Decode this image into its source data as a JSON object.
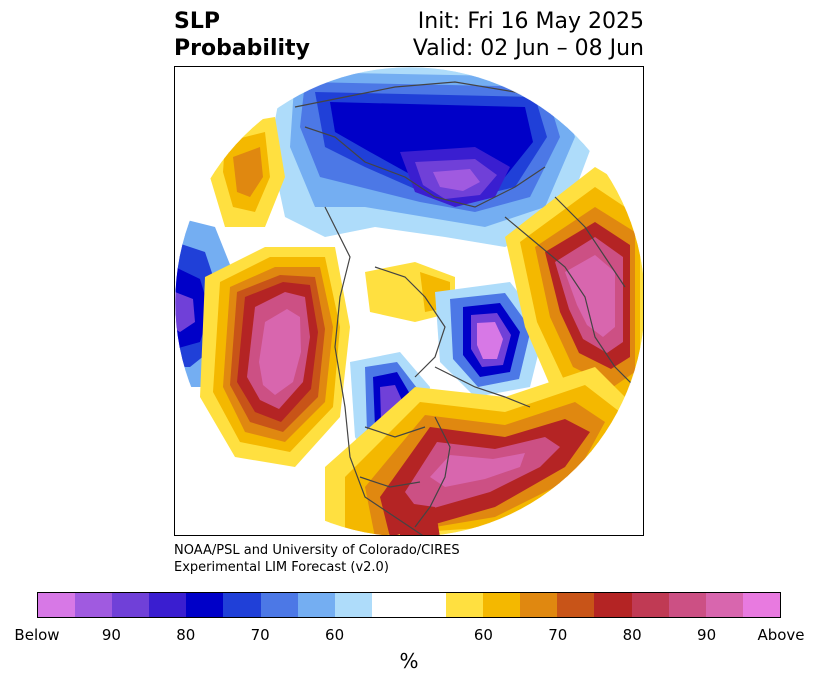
{
  "title": {
    "variable": "SLP",
    "subtitle": "Probability",
    "init": "Init: Fri 16 May 2025",
    "valid": "Valid: 02 Jun – 08 Jun"
  },
  "credits": {
    "line1": "NOAA/PSL and University of Colorado/CIRES",
    "line2": "Experimental LIM Forecast (v2.0)"
  },
  "colorbar": {
    "colors": [
      "#d778e6",
      "#a05ae0",
      "#7040d8",
      "#3a1ed0",
      "#0000c8",
      "#2040d8",
      "#4c78e6",
      "#74aef2",
      "#aedcfa",
      "#ffffff",
      "#ffffff",
      "#ffe040",
      "#f4b800",
      "#e08810",
      "#c85418",
      "#b42424",
      "#c03a54",
      "#cc5084",
      "#d866ae",
      "#e87ae0"
    ],
    "tick_labels": [
      "Below",
      "90",
      "80",
      "70",
      "60",
      "60",
      "70",
      "80",
      "90",
      "Above"
    ],
    "unit": "%"
  },
  "legend_palette": {
    "below_strong": "#9b4ee0",
    "below_mid": "#1c1cd0",
    "below_weak": "#74aef2",
    "above_weak": "#ffe040",
    "above_mid": "#e08810",
    "above_strong": "#b42424",
    "above_max": "#d866ae"
  }
}
